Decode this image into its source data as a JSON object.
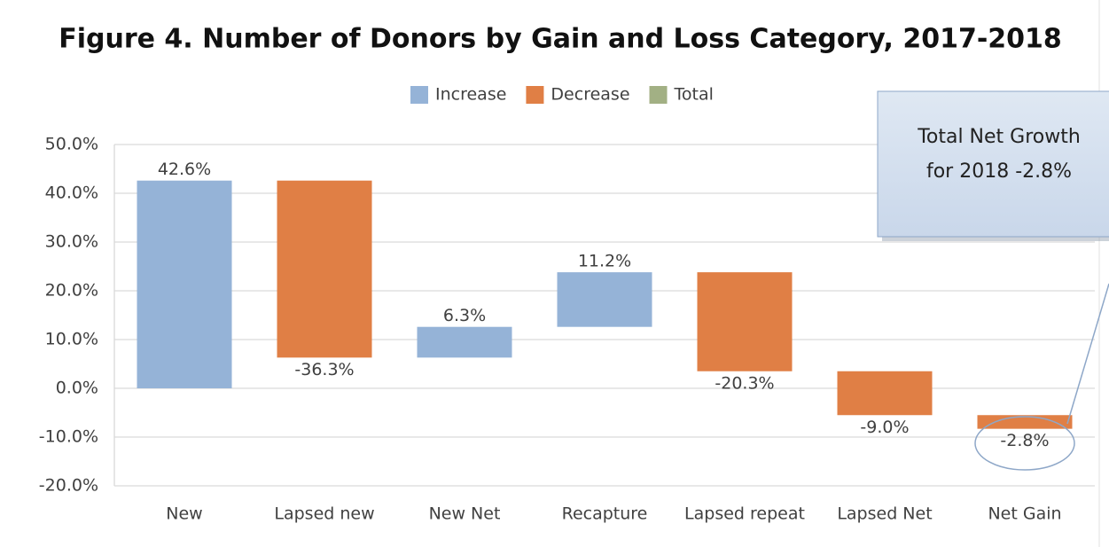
{
  "chart_data": {
    "type": "waterfall",
    "title": "Figure 4. Number of Donors by Gain and Loss Category, 2017-2018",
    "categories": [
      "New",
      "Lapsed new",
      "New Net",
      "Recapture",
      "Lapsed repeat",
      "Lapsed Net",
      "Net Gain"
    ],
    "series": [
      {
        "name": "Increase",
        "color": "#95b3d7",
        "values": [
          42.6,
          null,
          6.3,
          11.2,
          null,
          null,
          null
        ],
        "value_labels": [
          "42.6%",
          null,
          "6.3%",
          "11.2%",
          null,
          null,
          null
        ]
      },
      {
        "name": "Decrease",
        "color": "#e07f45",
        "values": [
          null,
          -36.3,
          null,
          null,
          -20.3,
          -9.0,
          -2.8
        ],
        "value_labels": [
          null,
          "-36.3%",
          null,
          null,
          "-20.3%",
          "-9.0%",
          "-2.8%"
        ]
      },
      {
        "name": "Total",
        "color": "#a2b084",
        "values": [
          null,
          null,
          null,
          null,
          null,
          null,
          null
        ]
      }
    ],
    "ylim": [
      -20,
      50
    ],
    "yticks": [
      {
        "value": -20,
        "label": "-20.0%"
      },
      {
        "value": -10,
        "label": "-10.0%"
      },
      {
        "value": 0,
        "label": "0.0%"
      },
      {
        "value": 10,
        "label": "10.0%"
      },
      {
        "value": 20,
        "label": "20.0%"
      },
      {
        "value": 30,
        "label": "30.0%"
      },
      {
        "value": 40,
        "label": "40.0%"
      },
      {
        "value": 50,
        "label": "50.0%"
      }
    ],
    "grid": true,
    "legend": "top",
    "annotation": {
      "lines": [
        "Total Net Growth",
        "for 2018 -2.8%"
      ]
    }
  }
}
